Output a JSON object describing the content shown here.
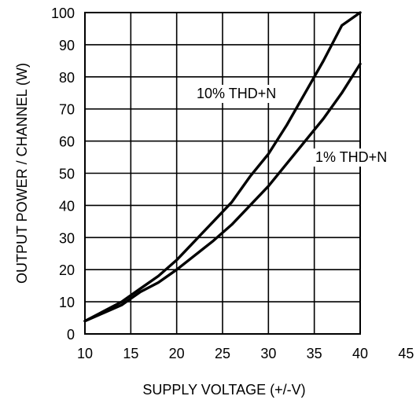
{
  "chart_data": {
    "type": "line",
    "title": "",
    "xlabel": "SUPPLY VOLTAGE (+/-V)",
    "ylabel": "OUTPUT POWER / CHANNEL (W)",
    "xlim": [
      10,
      45
    ],
    "ylim": [
      0,
      100
    ],
    "x_ticks": [
      10,
      15,
      20,
      25,
      30,
      35,
      40,
      45
    ],
    "y_ticks": [
      0,
      10,
      20,
      30,
      40,
      50,
      60,
      70,
      80,
      90,
      100
    ],
    "grid": true,
    "legend": "none",
    "series": [
      {
        "name": "10% THD+N",
        "color": "#000000",
        "x": [
          10,
          12,
          14,
          15,
          16,
          18,
          20,
          22,
          24,
          26,
          28,
          30,
          32,
          34,
          36,
          38,
          40
        ],
        "y": [
          4,
          7,
          10,
          12,
          14,
          18,
          23,
          29,
          35,
          41,
          49,
          56,
          65,
          75,
          85,
          96,
          100
        ]
      },
      {
        "name": "1% THD+N",
        "color": "#000000",
        "x": [
          10,
          12,
          14,
          15,
          16,
          18,
          20,
          22,
          24,
          26,
          28,
          30,
          32,
          34,
          36,
          38,
          40
        ],
        "y": [
          4,
          6.5,
          9,
          11,
          13,
          16,
          20,
          24.5,
          29,
          34,
          40,
          46,
          53,
          60,
          67,
          75,
          84
        ]
      }
    ]
  }
}
